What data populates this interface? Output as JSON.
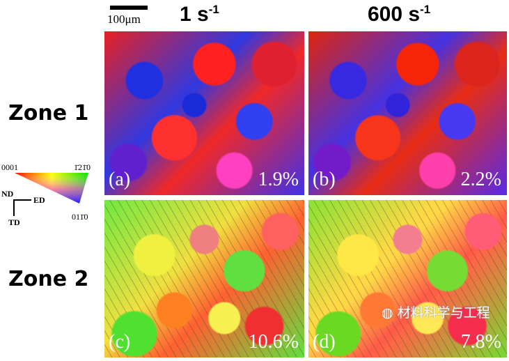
{
  "scale_bar": {
    "label": "100μm"
  },
  "columns": [
    {
      "base": "1 s",
      "exponent": "-1"
    },
    {
      "base": "600 s",
      "exponent": "-1"
    }
  ],
  "rows": [
    {
      "label": "Zone 1"
    },
    {
      "label": "Zone 2"
    }
  ],
  "panels": [
    {
      "id": "(a)",
      "value": "1.9%"
    },
    {
      "id": "(b)",
      "value": "2.2%"
    },
    {
      "id": "(c)",
      "value": "10.6%"
    },
    {
      "id": "(d)",
      "value": "7.8%"
    }
  ],
  "legend": {
    "corner_0001": "0001",
    "corner_1210": "1̄21̄0",
    "corner_0110": "011̄0",
    "axis_nd": "ND",
    "axis_ed": "ED",
    "axis_td": "TD"
  },
  "watermark": "材料科学与工程"
}
